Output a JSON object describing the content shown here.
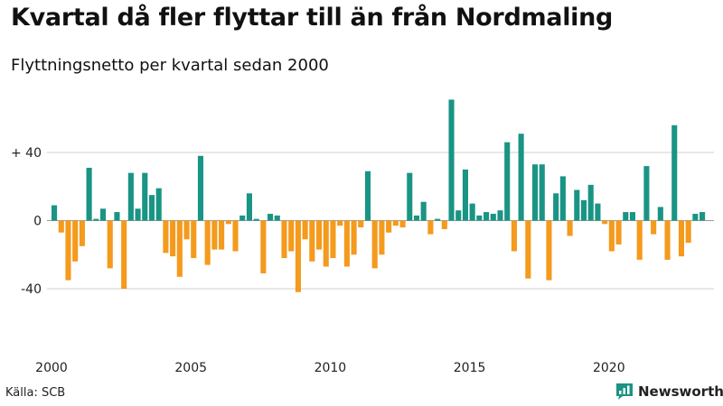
{
  "header": {
    "title": "Kvartal då fler flyttar till än från Nordmaling",
    "subtitle": "Flyttningsnetto per kvartal sedan 2000"
  },
  "footer": {
    "source": "Källa: SCB",
    "brand": "Newsworthy"
  },
  "colors": {
    "positive": "#1a9484",
    "negative": "#f49a1d",
    "grid": "#d0d0d0",
    "zero_line": "#999999"
  },
  "chart_data": {
    "type": "bar",
    "title": "Kvartal då fler flyttar till än från Nordmaling",
    "subtitle": "Flyttningsnetto per kvartal sedan 2000",
    "xlabel": "",
    "ylabel": "",
    "ylim": [
      -75,
      75
    ],
    "yticks": [
      {
        "value": 40,
        "label": "+ 40"
      },
      {
        "value": 0,
        "label": "0"
      },
      {
        "value": -40,
        "label": "-40"
      }
    ],
    "xticks": [
      {
        "index": 0,
        "label": "2000"
      },
      {
        "index": 20,
        "label": "2005"
      },
      {
        "index": 40,
        "label": "2010"
      },
      {
        "index": 60,
        "label": "2015"
      },
      {
        "index": 80,
        "label": "2020"
      }
    ],
    "grid": true,
    "values": [
      9,
      -7,
      -35,
      -24,
      -15,
      31,
      1,
      7,
      -28,
      5,
      -40,
      28,
      7,
      28,
      15,
      19,
      -19,
      -21,
      -33,
      -11,
      -22,
      38,
      -26,
      -17,
      -17,
      -2,
      -18,
      3,
      16,
      1,
      -31,
      4,
      3,
      -22,
      -18,
      -42,
      -11,
      -24,
      -17,
      -27,
      -22,
      -3,
      -27,
      -20,
      -4,
      29,
      -28,
      -20,
      -7,
      -3,
      -4,
      28,
      3,
      11,
      -8,
      1,
      -5,
      71,
      6,
      30,
      10,
      3,
      5,
      4,
      6,
      46,
      -18,
      51,
      -34,
      33,
      33,
      -35,
      16,
      26,
      -9,
      18,
      12,
      21,
      10,
      -2,
      -18,
      -14,
      5,
      5,
      -23,
      32,
      -8,
      8,
      -23,
      56,
      -21,
      -13,
      4,
      5
    ]
  }
}
